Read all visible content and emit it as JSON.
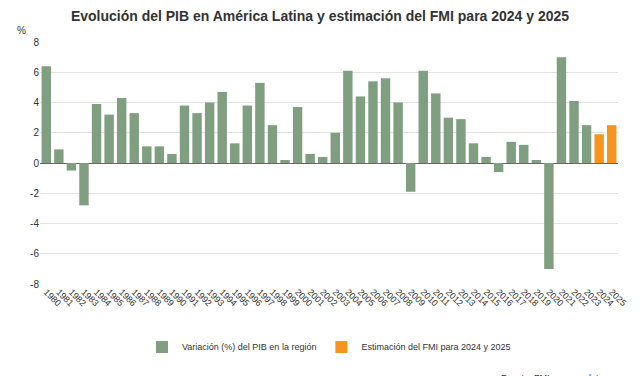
{
  "chart_data": {
    "type": "bar",
    "title": "Evolución del PIB en América Latina y estimación del FMI para 2024 y 2025",
    "ylabel": "%",
    "annotations": [
      "Fuente: FMI, www.epdata.es"
    ],
    "categories": [
      "1980",
      "1981",
      "1982",
      "1983",
      "1984",
      "1985",
      "1986",
      "1987",
      "1988",
      "1989",
      "1990",
      "1991",
      "1992",
      "1993",
      "1994",
      "1995",
      "1996",
      "1997",
      "1998",
      "1999",
      "2000",
      "2001",
      "2002",
      "2003",
      "2004",
      "2005",
      "2006",
      "2007",
      "2008",
      "2009",
      "2010",
      "2011",
      "2012",
      "2013",
      "2014",
      "2015",
      "2016",
      "2017",
      "2018",
      "2019",
      "2020",
      "2021",
      "2022",
      "2023",
      "2024",
      "2025"
    ],
    "series": [
      {
        "name": "Variación (%) del PIB en la región",
        "color": "#7f9f80",
        "values": [
          6.4,
          0.9,
          -0.5,
          -2.8,
          3.9,
          3.2,
          4.3,
          3.3,
          1.1,
          1.1,
          0.6,
          3.8,
          3.3,
          4.0,
          4.7,
          1.3,
          3.8,
          5.3,
          2.5,
          0.2,
          3.7,
          0.6,
          0.4,
          2.0,
          6.1,
          4.4,
          5.4,
          5.6,
          4.0,
          -1.9,
          6.1,
          4.6,
          3.0,
          2.9,
          1.3,
          0.4,
          -0.6,
          1.4,
          1.2,
          0.2,
          -7.0,
          7.0,
          4.1,
          2.5,
          null,
          null
        ]
      },
      {
        "name": "Estimación del FMI para 2024 y 2025",
        "color": "#f7941d",
        "values": [
          null,
          null,
          null,
          null,
          null,
          null,
          null,
          null,
          null,
          null,
          null,
          null,
          null,
          null,
          null,
          null,
          null,
          null,
          null,
          null,
          null,
          null,
          null,
          null,
          null,
          null,
          null,
          null,
          null,
          null,
          null,
          null,
          null,
          null,
          null,
          null,
          null,
          null,
          null,
          null,
          null,
          null,
          null,
          null,
          1.9,
          2.5
        ]
      }
    ],
    "ylim": [
      -8,
      8
    ],
    "yticks": [
      -8,
      -6,
      -4,
      -2,
      0,
      2,
      4,
      6,
      8
    ],
    "grid": true,
    "legend": "bottom"
  }
}
